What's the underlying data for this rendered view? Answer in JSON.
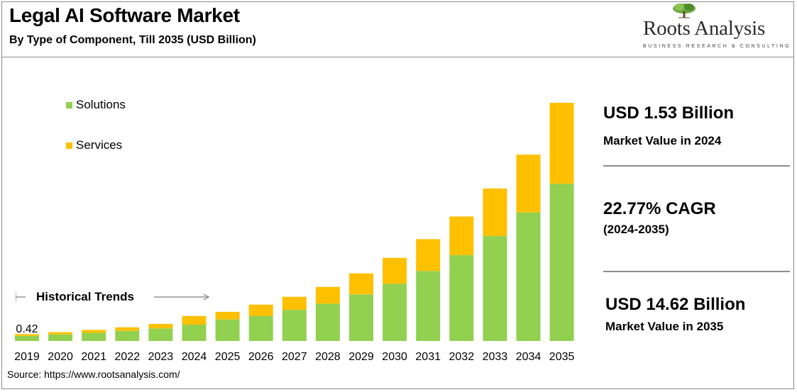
{
  "header": {
    "title": "Legal AI Software Market",
    "subtitle": "By Type of Component, Till 2035 (USD Billion)"
  },
  "brand": {
    "name": "Roots Analysis",
    "tagline": "BUSINESS RESEARCH & CONSULTING"
  },
  "annotations": {
    "historical_trends": "Historical Trends",
    "first_value_label": "0.42"
  },
  "stats": {
    "stat1_value": "USD 1.53 Billion",
    "stat1_caption": "Market Value in 2024",
    "stat2_value": "22.77% CAGR",
    "stat2_caption": "(2024-2035)",
    "stat3_value": "USD 14.62 Billion",
    "stat3_caption": "Market Value in 2035"
  },
  "footer": {
    "source": "Source: https://www.rootsanalysis.com/"
  },
  "colors": {
    "solutions": "#92d050",
    "services": "#ffc000",
    "rule": "#8c8c8c",
    "arrow": "#7f7f7f"
  },
  "chart_data": {
    "type": "bar",
    "stacked": true,
    "categories": [
      "2019",
      "2020",
      "2021",
      "2022",
      "2023",
      "2024",
      "2025",
      "2026",
      "2027",
      "2028",
      "2029",
      "2030",
      "2031",
      "2032",
      "2033",
      "2034",
      "2035"
    ],
    "series": [
      {
        "name": "Solutions",
        "values": [
          0.31,
          0.4,
          0.5,
          0.62,
          0.77,
          1.0,
          1.32,
          1.54,
          1.91,
          2.29,
          2.86,
          3.51,
          4.3,
          5.27,
          6.45,
          7.89,
          9.65
        ]
      },
      {
        "name": "Services",
        "values": [
          0.11,
          0.14,
          0.18,
          0.22,
          0.28,
          0.53,
          0.47,
          0.69,
          0.8,
          1.03,
          1.29,
          1.59,
          1.95,
          2.37,
          2.91,
          3.55,
          4.97
        ]
      }
    ],
    "totals_label": {
      "2019": "0.42"
    },
    "ylim": [
      0,
      15
    ],
    "grid": false,
    "legend": "top-left"
  }
}
